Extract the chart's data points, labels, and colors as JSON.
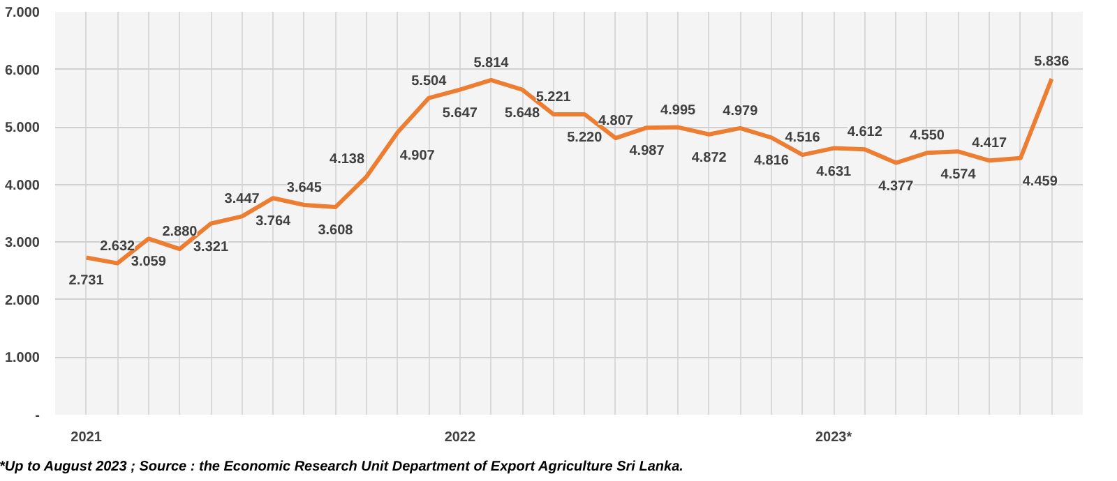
{
  "chart_data": {
    "type": "line",
    "categories": [
      "2021",
      null,
      null,
      null,
      null,
      null,
      null,
      null,
      null,
      null,
      null,
      null,
      "2022",
      null,
      null,
      null,
      null,
      null,
      null,
      null,
      null,
      null,
      null,
      null,
      "2023*",
      null,
      null,
      null,
      null,
      null,
      null,
      null
    ],
    "series": [
      {
        "color": "#ed7d31",
        "values": [
          2731,
          2632,
          3059,
          2880,
          3321,
          3447,
          3764,
          3645,
          3608,
          4138,
          4907,
          5504,
          5647,
          5814,
          5648,
          5221,
          5220,
          4807,
          4987,
          4995,
          4872,
          4979,
          4816,
          4516,
          4631,
          4612,
          4377,
          4550,
          4574,
          4417,
          4459,
          5836
        ],
        "value_labels": [
          "2.731",
          "2.632",
          "3.059",
          "2.880",
          "3.321",
          "3.447",
          "3.764",
          "3.645",
          "3.608",
          "4.138",
          "4.907",
          "5.504",
          "5.647",
          "5.814",
          "5.648",
          "5.221",
          "5.220",
          "4.807",
          "4.987",
          "4.995",
          "4.872",
          "4.979",
          "4.816",
          "4.516",
          "4.631",
          "4.612",
          "4.377",
          "4.550",
          "4.574",
          "4.417",
          "4.459",
          "5.836"
        ]
      }
    ],
    "ylim": [
      0,
      7000
    ],
    "yticks": [
      {
        "value": 0,
        "label": "-"
      },
      {
        "value": 1000,
        "label": "1.000"
      },
      {
        "value": 2000,
        "label": "2.000"
      },
      {
        "value": 3000,
        "label": "3.000"
      },
      {
        "value": 4000,
        "label": "4.000"
      },
      {
        "value": 5000,
        "label": "5.000"
      },
      {
        "value": 6000,
        "label": "6.000"
      },
      {
        "value": 7000,
        "label": "7.000"
      }
    ],
    "grid": true,
    "marker": "none",
    "line_style": "solid",
    "annotations": [
      "*Up to August 2023 ; Source : the Economic Research Unit Department of Export Agriculture Sri Lanka."
    ]
  }
}
